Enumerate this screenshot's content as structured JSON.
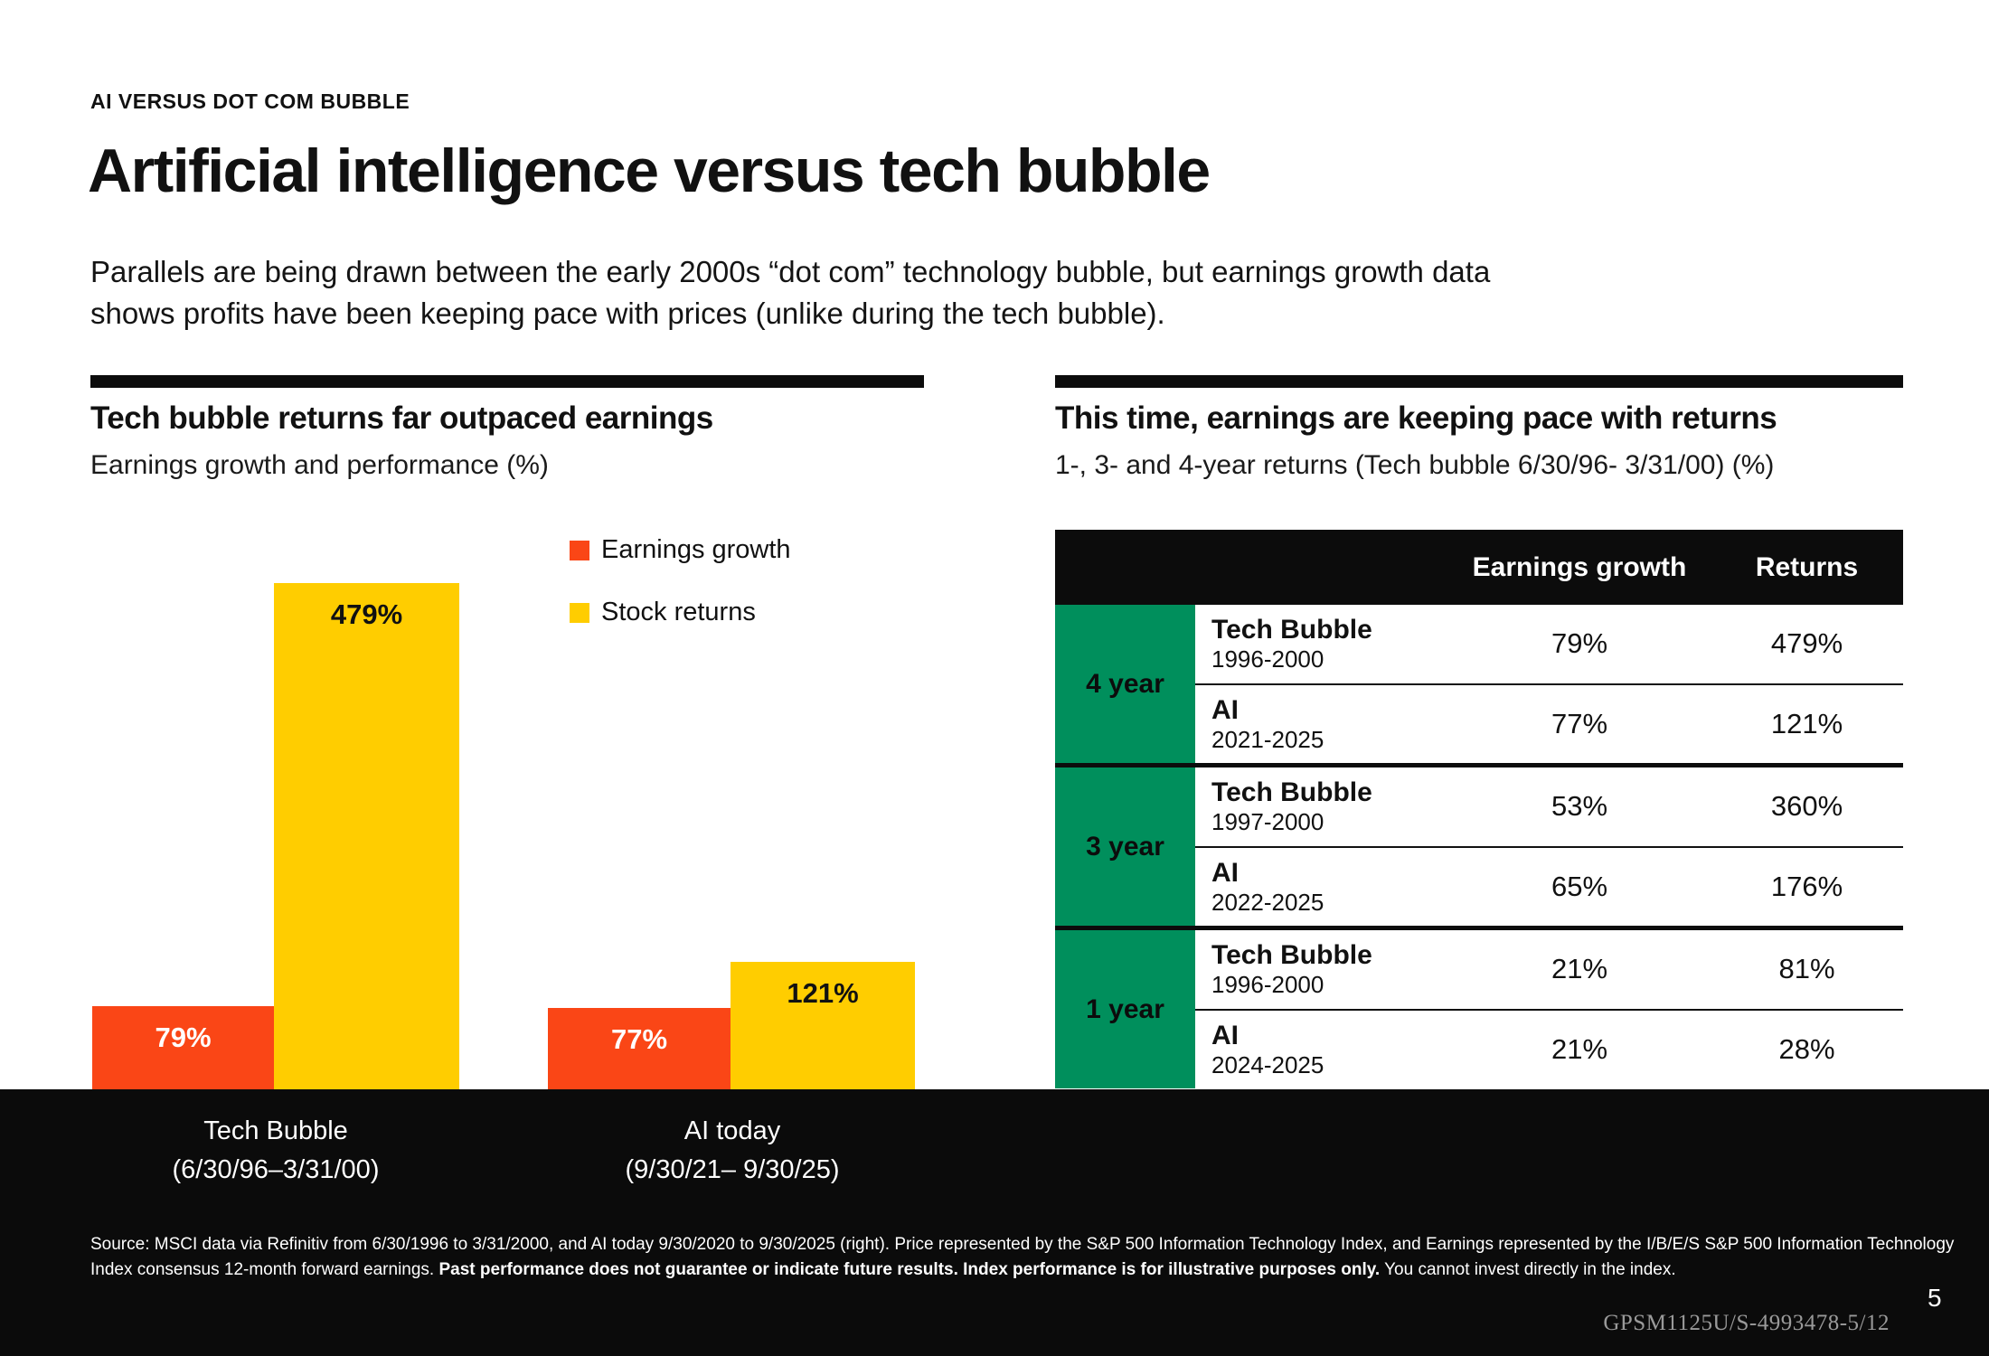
{
  "page": {
    "eyebrow": "AI VERSUS DOT COM BUBBLE",
    "title": "Artificial intelligence versus tech bubble",
    "intro_line1": "Parallels are being drawn between the early 2000s “dot com” technology bubble, but earnings growth data",
    "intro_line2": "shows profits have been keeping pace with prices (unlike during the tech bubble).",
    "page_number": "5",
    "doc_code": "GPSM1125U/S-4993478-5/12"
  },
  "colors": {
    "orange": "#FA4616",
    "yellow": "#FFCD00",
    "green": "#008F5C",
    "black_band": "#0B0B0B"
  },
  "left_panel": {
    "heading": "Tech bubble returns far outpaced earnings",
    "subheading": "Earnings growth and performance (%)",
    "x_labels": [
      {
        "line1": "Tech Bubble",
        "line2": "(6/30/96–3/31/00)"
      },
      {
        "line1": "AI today",
        "line2": "(9/30/21– 9/30/25)"
      }
    ]
  },
  "chart_data": {
    "type": "bar",
    "title": "Tech bubble returns far outpaced earnings",
    "subtitle": "Earnings growth and performance (%)",
    "categories": [
      "Tech Bubble (6/30/96–3/31/00)",
      "AI today (9/30/21– 9/30/25)"
    ],
    "series": [
      {
        "name": "Earnings growth",
        "color": "#FA4616",
        "values": [
          79,
          77
        ]
      },
      {
        "name": "Stock returns",
        "color": "#FFCD00",
        "values": [
          479,
          121
        ]
      }
    ],
    "value_label_format": "percent",
    "ylim": [
      0,
      479
    ],
    "grid": false,
    "legend_position": "right"
  },
  "right_panel": {
    "heading": "This time, earnings are keeping pace with returns",
    "subheading": "1-, 3- and 4-year returns (Tech bubble 6/30/96- 3/31/00) (%)",
    "table": {
      "col_headers": [
        "Earnings growth",
        "Returns"
      ],
      "groups": [
        {
          "label": "4 year",
          "rows": [
            {
              "name": "Tech Bubble",
              "period": "1996-2000",
              "earnings_growth": "79%",
              "returns": "479%"
            },
            {
              "name": "AI",
              "period": "2021-2025",
              "earnings_growth": "77%",
              "returns": "121%"
            }
          ]
        },
        {
          "label": "3 year",
          "rows": [
            {
              "name": "Tech Bubble",
              "period": "1997-2000",
              "earnings_growth": "53%",
              "returns": "360%"
            },
            {
              "name": "AI",
              "period": "2022-2025",
              "earnings_growth": "65%",
              "returns": "176%"
            }
          ]
        },
        {
          "label": "1 year",
          "rows": [
            {
              "name": "Tech Bubble",
              "period": "1996-2000",
              "earnings_growth": "21%",
              "returns": "81%"
            },
            {
              "name": "AI",
              "period": "2024-2025",
              "earnings_growth": "21%",
              "returns": "28%"
            }
          ]
        }
      ]
    }
  },
  "footer": {
    "line1": "Source: MSCI data via Refinitiv from 6/30/1996 to 3/31/2000, and AI today 9/30/2020 to 9/30/2025 (right). Price represented by the S&P 500 Information Technology Index, and  Earnings represented by the I/B/E/S S&P 500 Information Technology",
    "line2_pre": "Index consensus 12-month forward earnings. ",
    "line2_bold": "Past performance does not guarantee or indicate future results. Index performance is for illustrative purposes only.",
    "line2_post": " You cannot invest directly in the index."
  }
}
